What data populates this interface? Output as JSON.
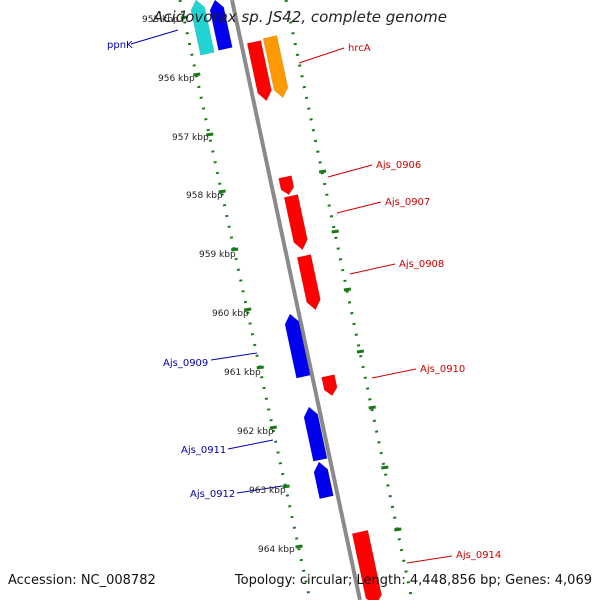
{
  "title": "Acidovorax sp. JS42, complete genome",
  "accession_text": "Accession: NC_008782",
  "summary_text": "Topology: circular; Length: 4,448,856 bp; Genes: 4,069",
  "colors": {
    "backbone": "#8a8a8a",
    "ticks": "#1a7a1a",
    "forward_gene": "#ff0000",
    "reverse_gene": "#0000ee",
    "cyan_gene": "#22d3d3",
    "orange_gene": "#ff9900",
    "forward_label": "#cc0000",
    "reverse_label": "#0000aa"
  },
  "scale_labels": [
    "955 kbp",
    "956 kbp",
    "957 kbp",
    "958 kbp",
    "959 kbp",
    "960 kbp",
    "961 kbp",
    "962 kbp",
    "963 kbp",
    "964 kbp"
  ],
  "genes": [
    {
      "label": "ppnK",
      "strand": "reverse",
      "color": "cyan"
    },
    {
      "label": "",
      "strand": "reverse",
      "color": "blue"
    },
    {
      "label": "",
      "strand": "forward",
      "color": "red"
    },
    {
      "label": "hrcA",
      "strand": "forward",
      "color": "orange"
    },
    {
      "label": "Ajs_0906",
      "strand": "forward",
      "color": "red"
    },
    {
      "label": "Ajs_0907",
      "strand": "forward",
      "color": "red"
    },
    {
      "label": "Ajs_0908",
      "strand": "forward",
      "color": "red"
    },
    {
      "label": "Ajs_0909",
      "strand": "reverse",
      "color": "blue"
    },
    {
      "label": "Ajs_0910",
      "strand": "forward",
      "color": "red"
    },
    {
      "label": "Ajs_0911",
      "strand": "reverse",
      "color": "blue"
    },
    {
      "label": "Ajs_0912",
      "strand": "reverse",
      "color": "blue"
    },
    {
      "label": "Ajs_0914",
      "strand": "forward",
      "color": "red"
    }
  ]
}
